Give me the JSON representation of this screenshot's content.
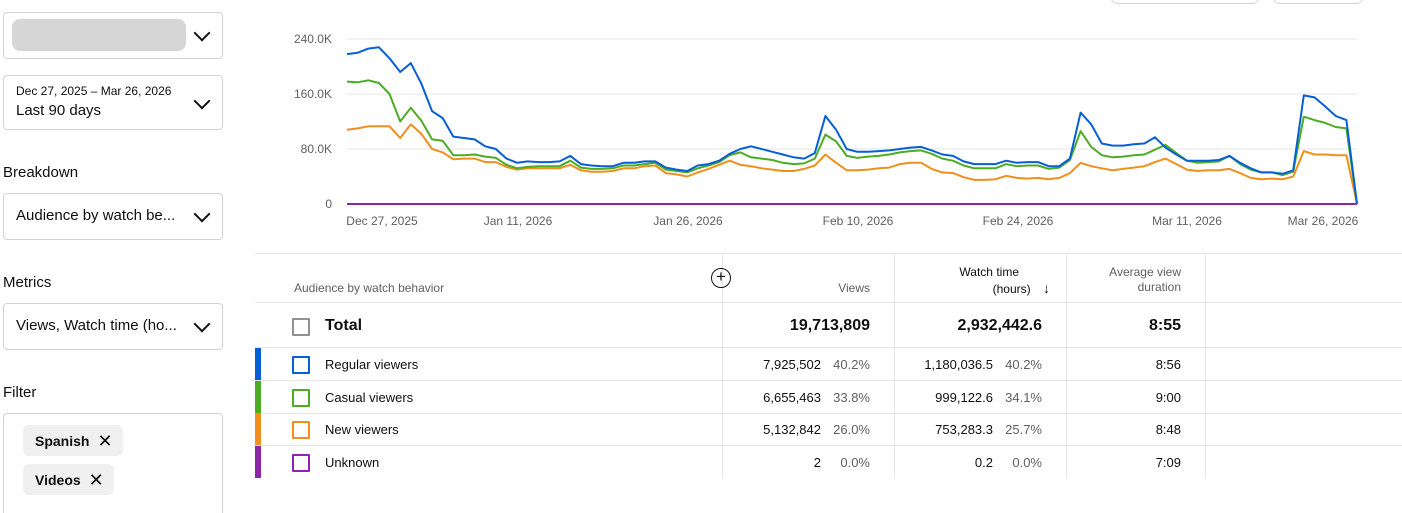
{
  "sidebar": {
    "date_range": "Dec 27, 2025 – Mar 26, 2026",
    "period": "Last 90 days",
    "breakdown_label": "Breakdown",
    "breakdown_value": "Audience by watch be...",
    "metrics_label": "Metrics",
    "metrics_value": "Views, Watch time (ho...",
    "filter_label": "Filter",
    "filters": [
      {
        "label": "Spanish"
      },
      {
        "label": "Videos"
      }
    ]
  },
  "chart_data": {
    "type": "line",
    "y_ticks": [
      "240.0K",
      "160.0K",
      "80.0K",
      "0"
    ],
    "x_ticks": [
      "Dec 27, 2025",
      "Jan 11, 2026",
      "Jan 26, 2026",
      "Feb 10, 2026",
      "Feb 24, 2026",
      "Mar 11, 2026",
      "Mar 26, 2026"
    ],
    "ylim": [
      0,
      240000
    ],
    "x_range": [
      "2025-12-27",
      "2026-03-26"
    ],
    "series": [
      {
        "name": "Regular viewers",
        "color": "#065fd4",
        "values": [
          218,
          220,
          226,
          228,
          212,
          192,
          205,
          175,
          135,
          125,
          98,
          96,
          94,
          84,
          80,
          66,
          60,
          62,
          61,
          61,
          62,
          70,
          58,
          56,
          55,
          55,
          60,
          60,
          62,
          62,
          53,
          50,
          48,
          56,
          58,
          63,
          73,
          80,
          84,
          80,
          76,
          72,
          68,
          66,
          74,
          128,
          108,
          80,
          76,
          76,
          77,
          78,
          80,
          82,
          83,
          78,
          72,
          70,
          62,
          58,
          58,
          58,
          63,
          60,
          61,
          61,
          55,
          55,
          66,
          133,
          116,
          88,
          85,
          85,
          87,
          88,
          97,
          82,
          72,
          63,
          63,
          63,
          64,
          70,
          60,
          52,
          46,
          46,
          44,
          49,
          158,
          155,
          142,
          128,
          122,
          0
        ]
      },
      {
        "name": "Casual viewers",
        "color": "#4cac25",
        "values": [
          178,
          177,
          180,
          176,
          160,
          120,
          140,
          121,
          94,
          92,
          71,
          71,
          72,
          69,
          67,
          57,
          52,
          54,
          55,
          55,
          55,
          63,
          53,
          51,
          51,
          52,
          56,
          56,
          58,
          60,
          50,
          48,
          46,
          52,
          56,
          61,
          71,
          75,
          68,
          66,
          64,
          60,
          58,
          59,
          66,
          101,
          91,
          70,
          67,
          69,
          70,
          72,
          75,
          77,
          78,
          73,
          66,
          63,
          56,
          52,
          52,
          52,
          58,
          55,
          56,
          56,
          51,
          53,
          64,
          106,
          83,
          71,
          68,
          69,
          71,
          72,
          79,
          86,
          74,
          63,
          60,
          61,
          62,
          70,
          58,
          50,
          46,
          46,
          42,
          47,
          127,
          122,
          118,
          112,
          110,
          0
        ]
      },
      {
        "name": "New viewers",
        "color": "#f18f1c",
        "values": [
          108,
          110,
          113,
          113,
          113,
          96,
          116,
          102,
          80,
          75,
          65,
          66,
          66,
          61,
          61,
          54,
          50,
          52,
          52,
          52,
          52,
          57,
          49,
          47,
          47,
          48,
          52,
          52,
          55,
          56,
          45,
          43,
          40,
          46,
          51,
          57,
          63,
          57,
          55,
          52,
          50,
          48,
          48,
          51,
          56,
          72,
          60,
          49,
          49,
          50,
          52,
          53,
          58,
          60,
          60,
          51,
          46,
          45,
          39,
          35,
          35,
          36,
          41,
          38,
          37,
          38,
          36,
          38,
          45,
          60,
          55,
          52,
          49,
          51,
          53,
          55,
          61,
          66,
          58,
          50,
          48,
          49,
          49,
          51,
          45,
          38,
          36,
          37,
          36,
          40,
          77,
          72,
          72,
          71,
          71,
          0
        ]
      },
      {
        "name": "Unknown",
        "color": "#8e24aa",
        "values": [
          0,
          0,
          0,
          0,
          0,
          0,
          0,
          0,
          0,
          0,
          0,
          0,
          0,
          0,
          0,
          0,
          0,
          0,
          0,
          0,
          0,
          0,
          0,
          0,
          0,
          0,
          0,
          0,
          0,
          0,
          0,
          0,
          0,
          0,
          0,
          0,
          0,
          0,
          0,
          0,
          0,
          0,
          0,
          0,
          0,
          0,
          0,
          0,
          0,
          0,
          0,
          0,
          0,
          0,
          0,
          0,
          0,
          0,
          0,
          0,
          0,
          0,
          0,
          0,
          0,
          0,
          0,
          0,
          0,
          0,
          0,
          0,
          0,
          0,
          0,
          0,
          0,
          0,
          0,
          0,
          0,
          0,
          0,
          0,
          0,
          0,
          0,
          0,
          0,
          0,
          0,
          0,
          0,
          0,
          0,
          0
        ]
      }
    ],
    "value_unit": "K"
  },
  "table": {
    "col_dimension": "Audience by watch behavior",
    "col_views": "Views",
    "col_watch_line1": "Watch time",
    "col_watch_line2": "(hours)",
    "col_avd_line1": "Average view",
    "col_avd_line2": "duration",
    "sort_arrow": "↓",
    "add_icon": "+",
    "total": {
      "label": "Total",
      "views": "19,713,809",
      "watch": "2,932,442.6",
      "avd": "8:55"
    },
    "rows": [
      {
        "name": "Regular viewers",
        "color": "#065fd4",
        "views": "7,925,502",
        "views_pct": "40.2%",
        "watch": "1,180,036.5",
        "watch_pct": "40.2%",
        "avd": "8:56"
      },
      {
        "name": "Casual viewers",
        "color": "#4cac25",
        "views": "6,655,463",
        "views_pct": "33.8%",
        "watch": "999,122.6",
        "watch_pct": "34.1%",
        "avd": "9:00"
      },
      {
        "name": "New viewers",
        "color": "#f18f1c",
        "views": "5,132,842",
        "views_pct": "26.0%",
        "watch": "753,283.3",
        "watch_pct": "25.7%",
        "avd": "8:48"
      },
      {
        "name": "Unknown",
        "color": "#8e24aa",
        "views": "2",
        "views_pct": "0.0%",
        "watch": "0.2",
        "watch_pct": "0.0%",
        "avd": "7:09"
      }
    ]
  }
}
